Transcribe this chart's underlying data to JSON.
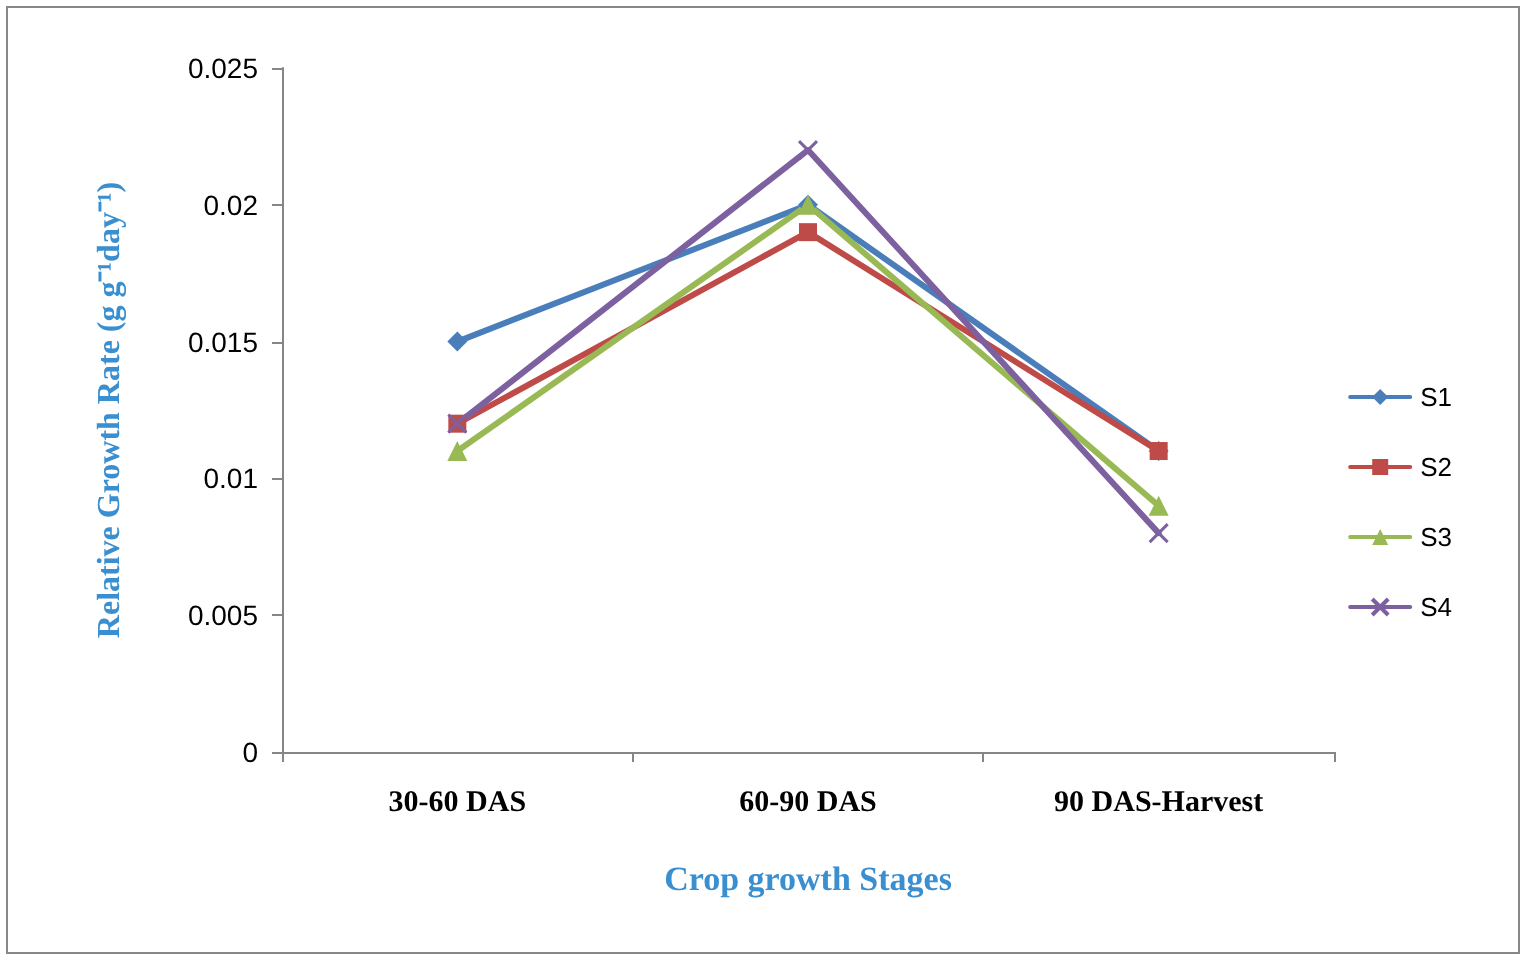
{
  "chart_data": {
    "type": "line",
    "xlabel": "Crop growth Stages",
    "ylabel": "Relative Growth Rate (g g⁻¹day⁻¹)",
    "categories": [
      "30-60 DAS",
      "60-90 DAS",
      "90 DAS-Harvest"
    ],
    "series": [
      {
        "name": "S1",
        "color": "#4a7ebb",
        "marker": "diamond",
        "values": [
          0.015,
          0.02,
          0.011
        ]
      },
      {
        "name": "S2",
        "color": "#be4b48",
        "marker": "square",
        "values": [
          0.012,
          0.019,
          0.011
        ]
      },
      {
        "name": "S3",
        "color": "#98b954",
        "marker": "triangle",
        "values": [
          0.011,
          0.02,
          0.009
        ]
      },
      {
        "name": "S4",
        "color": "#7d60a0",
        "marker": "cross",
        "values": [
          0.012,
          0.022,
          0.008
        ]
      }
    ],
    "ylim": [
      0,
      0.025
    ],
    "yticks": [
      0,
      0.005,
      0.01,
      0.015,
      0.02,
      0.025
    ],
    "grid": false,
    "legend": "right",
    "line_style": "solid"
  }
}
